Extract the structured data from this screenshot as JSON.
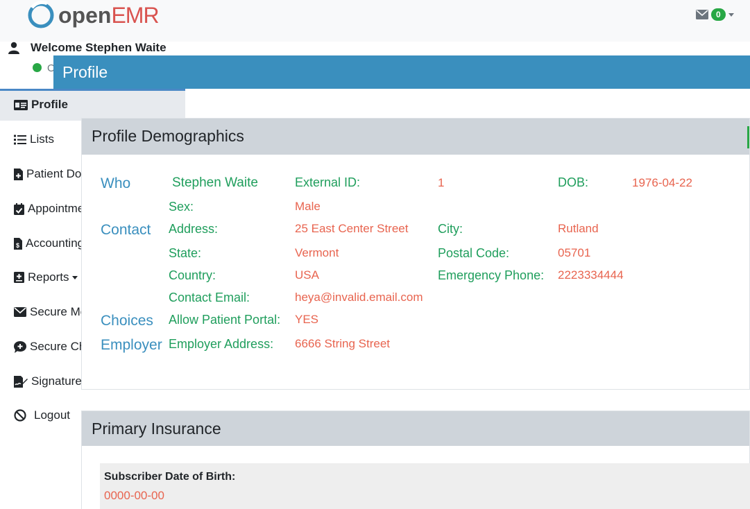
{
  "brand": {
    "logo_open": "open",
    "logo_emr": "EMR"
  },
  "topbar": {
    "message_count": "0",
    "icons": [
      "envelope-icon",
      "chevron-down-icon"
    ]
  },
  "user": {
    "welcome": "Welcome Stephen Waite",
    "status": "O"
  },
  "header": {
    "title": "Profile"
  },
  "sidebar": {
    "items": [
      {
        "label": "Profile",
        "icon": "id-card-icon"
      },
      {
        "label": "Lists",
        "icon": "list-icon"
      },
      {
        "label": "Patient Documents",
        "icon": "file-medical-icon"
      },
      {
        "label": "Appointment",
        "icon": "calendar-check-icon"
      },
      {
        "label": "Accountings",
        "icon": "file-invoice-dollar-icon"
      },
      {
        "label": "Reports",
        "icon": "file-medical-alt-icon"
      },
      {
        "label": "Secure Messaging",
        "icon": "envelope-icon"
      },
      {
        "label": "Secure Chat",
        "icon": "comment-medical-icon"
      },
      {
        "label": "Signature on File",
        "icon": "file-signature-icon"
      },
      {
        "label": "Logout",
        "icon": "ban-icon"
      }
    ]
  },
  "demographics": {
    "title": "Profile Demographics",
    "groups": {
      "who": "Who",
      "contact": "Contact",
      "choices": "Choices",
      "employer": "Employer"
    },
    "name": "Stephen Waite",
    "external_id_label": "External ID:",
    "external_id": "1",
    "dob_label": "DOB:",
    "dob": "1976-04-22",
    "sex_label": "Sex:",
    "sex": "Male",
    "address_label": "Address:",
    "address": "25 East Center Street",
    "city_label": "City:",
    "city": "Rutland",
    "state_label": "State:",
    "state": "Vermont",
    "postal_label": "Postal Code:",
    "postal": "05701",
    "country_label": "Country:",
    "country": "USA",
    "emergency_label": "Emergency Phone:",
    "emergency": "2223334444",
    "email_label": "Contact Email:",
    "email": "heya@invalid.email.com",
    "portal_label": "Allow Patient Portal:",
    "portal": "YES",
    "employer_address_label": "Employer Address:",
    "employer_address": "6666 String Street"
  },
  "insurance": {
    "title": "Primary Insurance",
    "subscriber_dob_label": "Subscriber Date of Birth:",
    "subscriber_dob": "0000-00-00"
  }
}
